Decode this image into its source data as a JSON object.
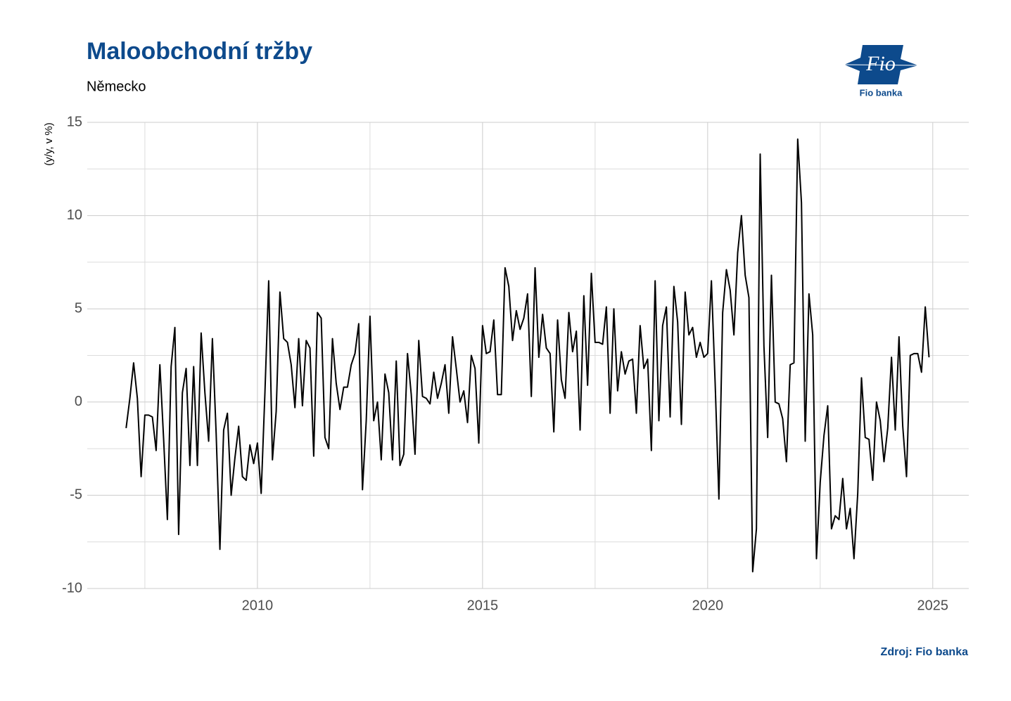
{
  "chart_data": {
    "type": "line",
    "title": "Maloobchodní tržby",
    "subtitle": "Německo",
    "y_label": "(y/y, v %)",
    "source": "Zdroj: Fio banka",
    "logo_mark": "Fio",
    "logo_text": "Fio banka",
    "color": "#000000",
    "grid": true,
    "xlim": [
      2006.22,
      2025.8
    ],
    "xticks": [
      2010,
      2015,
      2020,
      2025
    ],
    "x_minor_ticks": [
      2007.5,
      2012.5,
      2017.5,
      2022.5
    ],
    "ylim": [
      -10,
      15
    ],
    "yticks": [
      -10,
      -5,
      0,
      5,
      10,
      15
    ],
    "y_minor_ticks": [
      -7.5,
      -2.5,
      2.5,
      7.5,
      12.5
    ],
    "x": [
      "2007-02",
      "2007-03",
      "2007-04",
      "2007-05",
      "2007-06",
      "2007-07",
      "2007-08",
      "2007-09",
      "2007-10",
      "2007-11",
      "2007-12",
      "2008-01",
      "2008-02",
      "2008-03",
      "2008-04",
      "2008-05",
      "2008-06",
      "2008-07",
      "2008-08",
      "2008-09",
      "2008-10",
      "2008-11",
      "2008-12",
      "2009-01",
      "2009-02",
      "2009-03",
      "2009-04",
      "2009-05",
      "2009-06",
      "2009-07",
      "2009-08",
      "2009-09",
      "2009-10",
      "2009-11",
      "2009-12",
      "2010-01",
      "2010-02",
      "2010-03",
      "2010-04",
      "2010-05",
      "2010-06",
      "2010-07",
      "2010-08",
      "2010-09",
      "2010-10",
      "2010-11",
      "2010-12",
      "2011-01",
      "2011-02",
      "2011-03",
      "2011-04",
      "2011-05",
      "2011-06",
      "2011-07",
      "2011-08",
      "2011-09",
      "2011-10",
      "2011-11",
      "2011-12",
      "2012-01",
      "2012-02",
      "2012-03",
      "2012-04",
      "2012-05",
      "2012-06",
      "2012-07",
      "2012-08",
      "2012-09",
      "2012-10",
      "2012-11",
      "2012-12",
      "2013-01",
      "2013-02",
      "2013-03",
      "2013-04",
      "2013-05",
      "2013-06",
      "2013-07",
      "2013-08",
      "2013-09",
      "2013-10",
      "2013-11",
      "2013-12",
      "2014-01",
      "2014-02",
      "2014-03",
      "2014-04",
      "2014-05",
      "2014-06",
      "2014-07",
      "2014-08",
      "2014-09",
      "2014-10",
      "2014-11",
      "2014-12",
      "2015-01",
      "2015-02",
      "2015-03",
      "2015-04",
      "2015-05",
      "2015-06",
      "2015-07",
      "2015-08",
      "2015-09",
      "2015-10",
      "2015-11",
      "2015-12",
      "2016-01",
      "2016-02",
      "2016-03",
      "2016-04",
      "2016-05",
      "2016-06",
      "2016-07",
      "2016-08",
      "2016-09",
      "2016-10",
      "2016-11",
      "2016-12",
      "2017-01",
      "2017-02",
      "2017-03",
      "2017-04",
      "2017-05",
      "2017-06",
      "2017-07",
      "2017-08",
      "2017-09",
      "2017-10",
      "2017-11",
      "2017-12",
      "2018-01",
      "2018-02",
      "2018-03",
      "2018-04",
      "2018-05",
      "2018-06",
      "2018-07",
      "2018-08",
      "2018-09",
      "2018-10",
      "2018-11",
      "2018-12",
      "2019-01",
      "2019-02",
      "2019-03",
      "2019-04",
      "2019-05",
      "2019-06",
      "2019-07",
      "2019-08",
      "2019-09",
      "2019-10",
      "2019-11",
      "2019-12",
      "2020-01",
      "2020-02",
      "2020-03",
      "2020-04",
      "2020-05",
      "2020-06",
      "2020-07",
      "2020-08",
      "2020-09",
      "2020-10",
      "2020-11",
      "2020-12",
      "2021-01",
      "2021-02",
      "2021-03",
      "2021-04",
      "2021-05",
      "2021-06",
      "2021-07",
      "2021-08",
      "2021-09",
      "2021-10",
      "2021-11",
      "2021-12",
      "2022-01",
      "2022-02",
      "2022-03",
      "2022-04",
      "2022-05",
      "2022-06",
      "2022-07",
      "2022-08",
      "2022-09",
      "2022-10",
      "2022-11",
      "2022-12",
      "2023-01",
      "2023-02",
      "2023-03",
      "2023-04",
      "2023-05",
      "2023-06",
      "2023-07",
      "2023-08",
      "2023-09",
      "2023-10",
      "2023-11",
      "2023-12",
      "2024-01",
      "2024-02",
      "2024-03",
      "2024-04",
      "2024-05",
      "2024-06",
      "2024-07",
      "2024-08",
      "2024-09",
      "2024-10",
      "2024-11",
      "2024-12"
    ],
    "values": [
      -1.4,
      0.2,
      2.1,
      0.2,
      -4.0,
      -0.7,
      -0.7,
      -0.8,
      -2.6,
      2.0,
      -2.0,
      -6.3,
      1.9,
      4.0,
      -7.1,
      0.5,
      1.8,
      -3.4,
      1.9,
      -3.4,
      3.7,
      0.5,
      -2.1,
      3.4,
      -1.7,
      -7.9,
      -1.5,
      -0.6,
      -5.0,
      -3.0,
      -1.3,
      -4.0,
      -4.2,
      -2.3,
      -3.3,
      -2.2,
      -4.9,
      0.5,
      6.5,
      -3.1,
      -0.5,
      5.9,
      3.4,
      3.2,
      2.0,
      -0.3,
      3.4,
      -0.2,
      3.3,
      2.9,
      -2.9,
      4.8,
      4.5,
      -1.9,
      -2.5,
      3.4,
      1.0,
      -0.4,
      0.8,
      0.8,
      2.0,
      2.6,
      4.2,
      -4.7,
      -1.0,
      4.6,
      -1.0,
      0.0,
      -3.1,
      1.5,
      0.5,
      -3.1,
      2.2,
      -3.4,
      -2.8,
      2.6,
      0.4,
      -2.8,
      3.3,
      0.3,
      0.2,
      -0.1,
      1.6,
      0.2,
      1.0,
      2.0,
      -0.6,
      3.5,
      1.8,
      0.0,
      0.6,
      -1.1,
      2.5,
      1.8,
      -2.2,
      4.1,
      2.6,
      2.7,
      4.4,
      0.4,
      0.4,
      7.2,
      6.2,
      3.3,
      4.9,
      3.9,
      4.5,
      5.8,
      0.3,
      7.2,
      2.4,
      4.7,
      2.9,
      2.6,
      -1.6,
      4.4,
      1.2,
      0.2,
      4.8,
      2.7,
      3.8,
      -1.5,
      5.7,
      0.9,
      6.9,
      3.2,
      3.2,
      3.1,
      5.1,
      -0.6,
      5.0,
      0.6,
      2.7,
      1.5,
      2.2,
      2.3,
      -0.6,
      4.1,
      1.8,
      2.3,
      -2.6,
      6.5,
      -1.0,
      4.1,
      5.1,
      -0.8,
      6.2,
      4.3,
      -1.2,
      5.9,
      3.6,
      4.0,
      2.4,
      3.2,
      2.4,
      2.6,
      6.5,
      1.0,
      -5.2,
      4.8,
      7.1,
      6.0,
      3.6,
      8.0,
      10.0,
      6.8,
      5.6,
      -9.1,
      -6.8,
      13.3,
      3.0,
      -1.9,
      6.8,
      0.0,
      -0.1,
      -0.9,
      -3.2,
      2.0,
      2.1,
      14.1,
      10.7,
      -2.1,
      5.8,
      3.6,
      -8.4,
      -4.3,
      -1.8,
      -0.2,
      -6.8,
      -6.1,
      -6.3,
      -4.1,
      -6.8,
      -5.7,
      -8.4,
      -4.9,
      1.3,
      -1.9,
      -2.0,
      -4.2,
      0.0,
      -1.0,
      -3.2,
      -1.4,
      2.4,
      -1.5,
      3.5,
      -1.3,
      -4.0,
      2.5,
      2.6,
      2.6,
      1.6,
      5.1,
      2.4
    ]
  }
}
